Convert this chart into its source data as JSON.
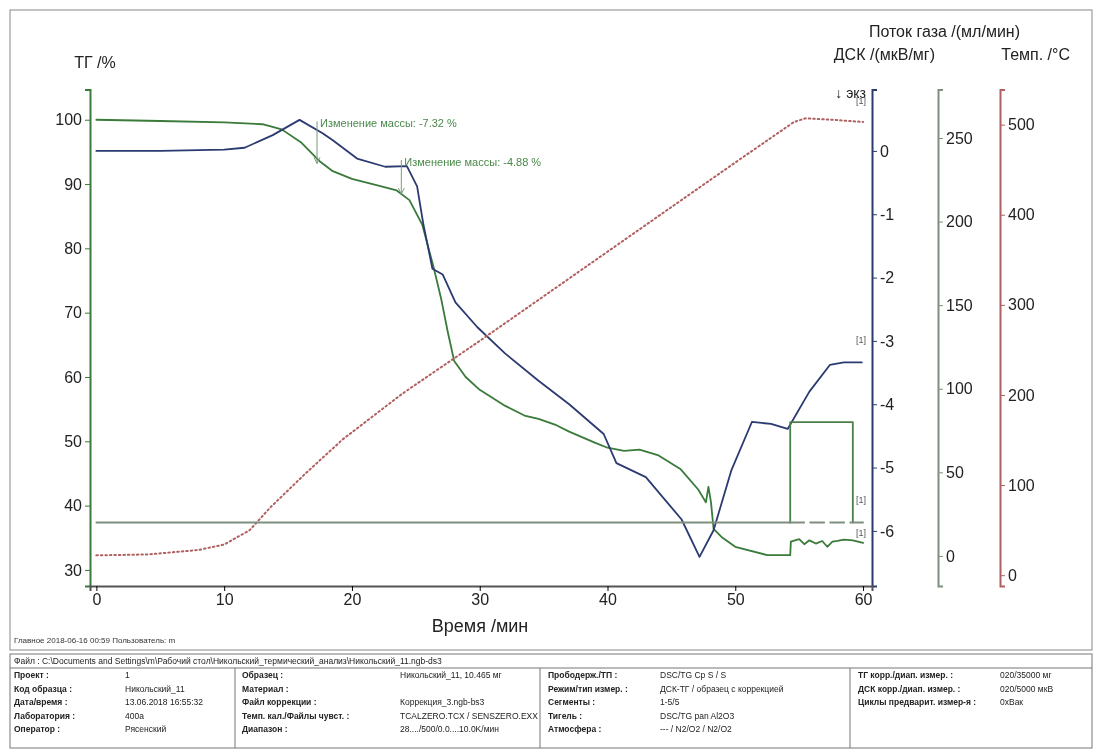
{
  "chart_data": [
    {
      "type": "line",
      "xlabel": "Время /мин",
      "ylabel": "ТГ /%",
      "y2label": "ДСК /(мкВ/мг)",
      "xlim": [
        -0.5,
        60.7
      ],
      "xticks": [
        0,
        10,
        20,
        30,
        40,
        50,
        60
      ],
      "ylim": [
        27.5,
        104.7
      ],
      "yticks": [
        30,
        40,
        50,
        60,
        70,
        80,
        90,
        100
      ],
      "y2lim": [
        -6.87,
        0.97
      ],
      "y2ticks": [
        -6,
        -5,
        -4,
        -3,
        -2,
        -1,
        0
      ],
      "series": [
        {
          "color": "#3a7a3a",
          "axis": "y",
          "x": [
            0,
            5,
            10,
            13,
            14.5,
            16,
            17.5,
            18.5,
            20,
            22,
            23.5,
            24.5,
            25.5,
            26.4,
            27,
            27.5,
            28,
            28.9,
            30,
            30.8,
            32,
            33.5,
            34.6,
            36,
            37,
            39,
            40,
            41.3,
            42.5,
            44,
            45.7,
            47.1,
            47.7,
            47.9,
            48.1,
            48.3,
            49,
            50,
            52.5,
            54.3,
            54.35,
            55,
            55.4,
            55.8,
            56.3,
            56.8,
            57.2,
            57.6,
            58,
            58.5,
            59.2,
            60
          ],
          "values": [
            100,
            99.8,
            99.6,
            99.3,
            98.5,
            96.5,
            93.5,
            92,
            90.8,
            89.8,
            89,
            87.5,
            83.7,
            77,
            72,
            67,
            62.5,
            60,
            58,
            57,
            55.5,
            54,
            53.5,
            52.5,
            51.5,
            49.8,
            49,
            48.5,
            48.7,
            47.8,
            45.7,
            42.5,
            40.5,
            42.9,
            40.5,
            36.4,
            35,
            33.6,
            32.3,
            32.3,
            34.4,
            34.8,
            34,
            34.6,
            34.1,
            34.5,
            33.6,
            34.4,
            34.5,
            34.7,
            34.6,
            34.2
          ]
        },
        {
          "color": "#2b3a70",
          "axis": "y2",
          "x": [
            0,
            5,
            10,
            11.6,
            13.8,
            15.9,
            17.7,
            18.5,
            20.4,
            22.6,
            24.3,
            25.1,
            25.6,
            26.3,
            27.1,
            28.1,
            29.8,
            32,
            34.6,
            37,
            39.7,
            40.7,
            43,
            45.8,
            47.2,
            48.3,
            49.7,
            51.3,
            52.8,
            54.1,
            55.8,
            57.4,
            58.5,
            59.9
          ],
          "values": [
            0,
            0,
            0.02,
            0.05,
            0.25,
            0.49,
            0.28,
            0.17,
            -0.12,
            -0.25,
            -0.24,
            -0.56,
            -1.17,
            -1.86,
            -1.95,
            -2.39,
            -2.78,
            -3.2,
            -3.63,
            -4.0,
            -4.47,
            -4.93,
            -5.15,
            -5.82,
            -6.41,
            -5.99,
            -5.04,
            -4.28,
            -4.31,
            -4.39,
            -3.8,
            -3.38,
            -3.34,
            -3.34
          ]
        }
      ],
      "annotations": [
        {
          "text": "Изменение массы: -7.32 %",
          "x": 17.5,
          "y": 98.8
        },
        {
          "text": "Изменение массы: -4.88 %",
          "x": 24.1,
          "y": 92.8
        },
        "↓ экз",
        "[1]",
        "[1]",
        "[1]",
        "[1]",
        "Главное   2018-06-16 00:59   Пользователь: m",
        "Файл : C:\\Documents and Settings\\m\\Рабочий стол\\Никольский_термический_анализ\\Никольский_11.ngb-ds3",
        "Проект :",
        "1",
        "Код образца :",
        "Никольский_11",
        "Дата/время :",
        "13.06.2018 16:55:32",
        "Лаборатория :",
        "400а",
        "Оператор :",
        "Рясенский",
        "Образец :",
        "Никольский_11, 10.465 мг",
        "Материал :",
        "Файл коррекции :",
        "Коррекция_3.ngb-bs3",
        "Темп. кал./Файлы чувст. :",
        "TCALZERO.TCX / SENSZERO.EXX",
        "Диапазон :",
        "28..../500/0.0....10.0K/мин",
        "Прободерж./ТП :",
        "DSC/TG Cp S / S",
        "Режим/тип измер. :",
        "ДСК-ТГ / образец с коррекцией",
        "Сегменты :",
        "1-5/5",
        "Тигель :",
        "DSC/TG pan Al2O3",
        "Атмосфера :",
        "--- / N2/O2 / N2/O2",
        "ТГ корр./диап. измер. :",
        "020/35000 мг",
        "ДСК корр./диап. измер. :",
        "020/5000 мкВ",
        "Циклы предварит. измер-я :",
        "0хВак"
      ]
    },
    {
      "type": "line",
      "ylabel": "Темп. /°C",
      "xlim": [
        -0.5,
        60.7
      ],
      "ylim": [
        -12,
        539
      ],
      "yticks": [
        0,
        100,
        200,
        300,
        400,
        500
      ],
      "tick_labels": "y",
      "series": [
        {
          "color": "#b06060",
          "line_style": "dotted",
          "x": [
            0,
            4,
            8,
            10,
            12,
            13.6,
            16.3,
            19.3,
            24,
            30,
            40,
            50,
            54.6,
            55.5,
            58,
            60
          ],
          "values": [
            22,
            23,
            28,
            34,
            50,
            75,
            112,
            151,
            202,
            260,
            359,
            458,
            503,
            507,
            505,
            503
          ]
        }
      ]
    },
    {
      "type": "line",
      "ylabel": "Поток газа /(мл/мин)",
      "xlim": [
        -0.5,
        60.7
      ],
      "ylim": [
        -18,
        279
      ],
      "yticks": [
        0,
        50,
        100,
        150,
        200,
        250
      ],
      "tick_labels": "y",
      "series": [
        {
          "color": "#7f8f7f",
          "x": [
            0,
            54.3
          ],
          "values": [
            20,
            20
          ]
        },
        {
          "color": "#4a804a",
          "x": [
            54.3,
            54.3,
            59.2,
            59.2
          ],
          "values": [
            20,
            80,
            80,
            20
          ]
        },
        {
          "color": "#7f8f7f",
          "line_style": "dashed",
          "x": [
            54.3,
            60
          ],
          "values": [
            20,
            20
          ]
        }
      ]
    }
  ]
}
